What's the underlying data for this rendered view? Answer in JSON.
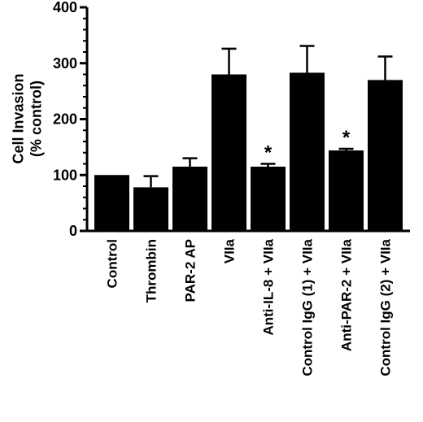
{
  "chart_data": {
    "type": "bar",
    "title": "",
    "xlabel": "",
    "ylabel": [
      "Cell Invasion",
      "(% control)"
    ],
    "ylim": [
      0,
      400
    ],
    "yticks": [
      0,
      100,
      200,
      300,
      400
    ],
    "categories": [
      "Control",
      "Thrombin",
      "PAR-2 AP",
      "VIIa",
      "Anti-IL-8 + VIIa",
      "Control IgG (1) + VIIa",
      "Anti-PAR-2 + VIIa",
      "Control IgG (2) + VIIa"
    ],
    "values": [
      100,
      78,
      115,
      280,
      115,
      283,
      144,
      270
    ],
    "error": [
      0,
      20,
      15,
      46,
      5,
      48,
      3,
      42
    ],
    "significance": [
      "",
      "",
      "",
      "",
      "*",
      "",
      "*",
      ""
    ],
    "bar_color": "#000000",
    "grid": false,
    "legend": "none"
  }
}
